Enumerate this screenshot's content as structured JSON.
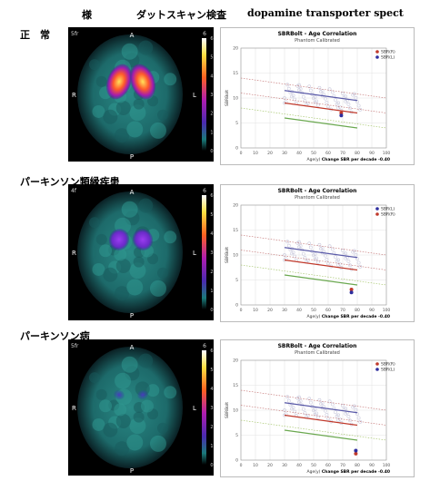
{
  "header": {
    "part1": "様",
    "part2": "ダットスキャン検査",
    "part3": "dopamine transporter spect"
  },
  "rows": [
    {
      "label": "正　常",
      "scan": {
        "corner": "5fr",
        "top": "A",
        "bottom": "P",
        "left": "R",
        "right": "L",
        "scale_top": "6"
      },
      "uptake_level": 1.0
    },
    {
      "label": "パーキンソン類縁疾患",
      "scan": {
        "corner": "4f",
        "top": "A",
        "bottom": "P",
        "left": "R",
        "right": "L",
        "scale_top": "6"
      },
      "uptake_level": 0.55
    },
    {
      "label": "パーキンソン病",
      "scan": {
        "corner": "5fr",
        "top": "A",
        "bottom": "P",
        "left": "R",
        "right": "L",
        "scale_top": "6"
      },
      "uptake_level": 0.2
    }
  ],
  "colors": {
    "upper_line": "#5a5aa8",
    "mean_line": "#c0392b",
    "lower_line": "#6aa84f",
    "dots": "#c8c8dc",
    "point_right": "#c0392b",
    "point_left": "#2e2e9e"
  },
  "chart_data": [
    {
      "type": "scatter",
      "title": "SBRBolt - Age Correlation",
      "subtitle": "Phantom Calibrated",
      "xlabel": "Age(y)",
      "ylabel": "SBRBolt",
      "xlim": [
        0,
        100
      ],
      "ylim": [
        0,
        20
      ],
      "xticks": [
        "0",
        "10",
        "20",
        "30",
        "40",
        "50",
        "60",
        "70",
        "80",
        "90",
        "100"
      ],
      "yticks": [
        "0",
        "5",
        "10",
        "15",
        "20"
      ],
      "legend": [
        "SBR(R)",
        "SBR(L)"
      ],
      "footer": "Change SBR per decade -0.40",
      "series": [
        {
          "name": "SBR(R)",
          "x": [
            69
          ],
          "y": [
            7.0
          ]
        },
        {
          "name": "SBR(L)",
          "x": [
            69
          ],
          "y": [
            6.5
          ]
        }
      ]
    },
    {
      "type": "scatter",
      "title": "SBRBolt - Age Correlation",
      "subtitle": "Phantom Calibrated",
      "xlabel": "Age(y)",
      "ylabel": "SBRBolt",
      "xlim": [
        0,
        100
      ],
      "ylim": [
        0,
        20
      ],
      "xticks": [
        "0",
        "10",
        "20",
        "30",
        "40",
        "50",
        "60",
        "70",
        "80",
        "90",
        "100"
      ],
      "yticks": [
        "0",
        "5",
        "10",
        "15",
        "20"
      ],
      "legend": [
        "SBR(L)",
        "SBR(R)"
      ],
      "footer": "Change SBR per decade -0.40",
      "series": [
        {
          "name": "SBR(R)",
          "x": [
            76
          ],
          "y": [
            3.1
          ]
        },
        {
          "name": "SBR(L)",
          "x": [
            76
          ],
          "y": [
            2.5
          ]
        }
      ]
    },
    {
      "type": "scatter",
      "title": "SBRBolt - Age Correlation",
      "subtitle": "Phantom Calibrated",
      "xlabel": "Age(y)",
      "ylabel": "SBRBolt",
      "xlim": [
        0,
        100
      ],
      "ylim": [
        0,
        20
      ],
      "xticks": [
        "0",
        "10",
        "20",
        "30",
        "40",
        "50",
        "60",
        "70",
        "80",
        "90",
        "100"
      ],
      "yticks": [
        "0",
        "5",
        "10",
        "15",
        "20"
      ],
      "legend": [
        "SBR(R)",
        "SBR(L)"
      ],
      "footer": "Change SBR per decade -0.40",
      "series": [
        {
          "name": "SBR(R)",
          "x": [
            79
          ],
          "y": [
            1.3
          ]
        },
        {
          "name": "SBR(L)",
          "x": [
            79
          ],
          "y": [
            1.9
          ]
        }
      ]
    }
  ]
}
